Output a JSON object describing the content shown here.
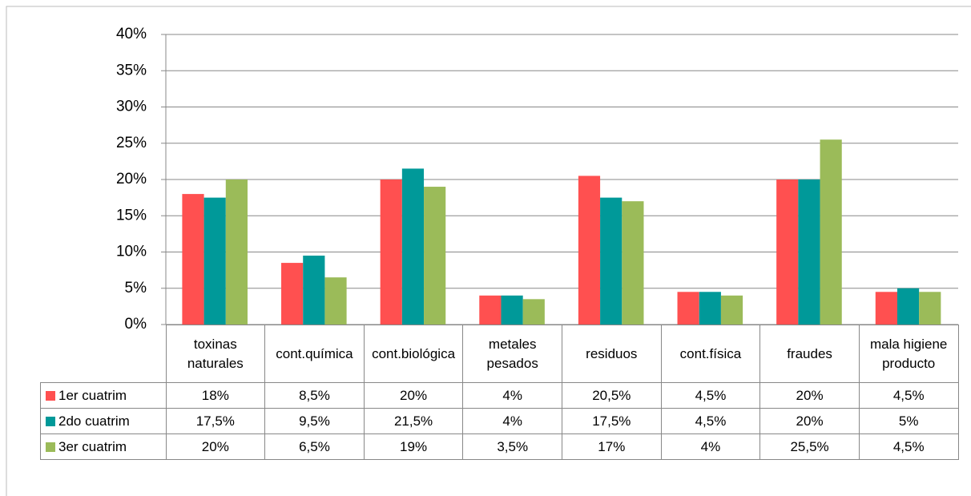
{
  "chart_data": {
    "type": "bar",
    "categories": [
      "toxinas naturales",
      "cont.química",
      "cont.biológica",
      "metales pesados",
      "residuos",
      "cont.física",
      "fraudes",
      "mala higiene producto"
    ],
    "series": [
      {
        "name": "1er cuatrim",
        "color": "#ff5050",
        "values": [
          18,
          8.5,
          20,
          4,
          20.5,
          4.5,
          20,
          4.5
        ],
        "value_labels": [
          "18%",
          "8,5%",
          "20%",
          "4%",
          "20,5%",
          "4,5%",
          "20%",
          "4,5%"
        ]
      },
      {
        "name": "2do cuatrim",
        "color": "#009999",
        "values": [
          17.5,
          9.5,
          21.5,
          4,
          17.5,
          4.5,
          20,
          5
        ],
        "value_labels": [
          "17,5%",
          "9,5%",
          "21,5%",
          "4%",
          "17,5%",
          "4,5%",
          "20%",
          "5%"
        ]
      },
      {
        "name": "3er cuatrim",
        "color": "#9bbb59",
        "values": [
          20,
          6.5,
          19,
          3.5,
          17,
          4,
          25.5,
          4.5
        ],
        "value_labels": [
          "20%",
          "6,5%",
          "19%",
          "3,5%",
          "17%",
          "4%",
          "25,5%",
          "4,5%"
        ]
      }
    ],
    "ylim": [
      0,
      40
    ],
    "yticks": [
      {
        "value": 0,
        "label": "0%"
      },
      {
        "value": 5,
        "label": "5%"
      },
      {
        "value": 10,
        "label": "10%"
      },
      {
        "value": 15,
        "label": "15%"
      },
      {
        "value": 20,
        "label": "20%"
      },
      {
        "value": 25,
        "label": "25%"
      },
      {
        "value": 30,
        "label": "30%"
      },
      {
        "value": 35,
        "label": "35%"
      },
      {
        "value": 40,
        "label": "40%"
      }
    ],
    "grid": true
  }
}
